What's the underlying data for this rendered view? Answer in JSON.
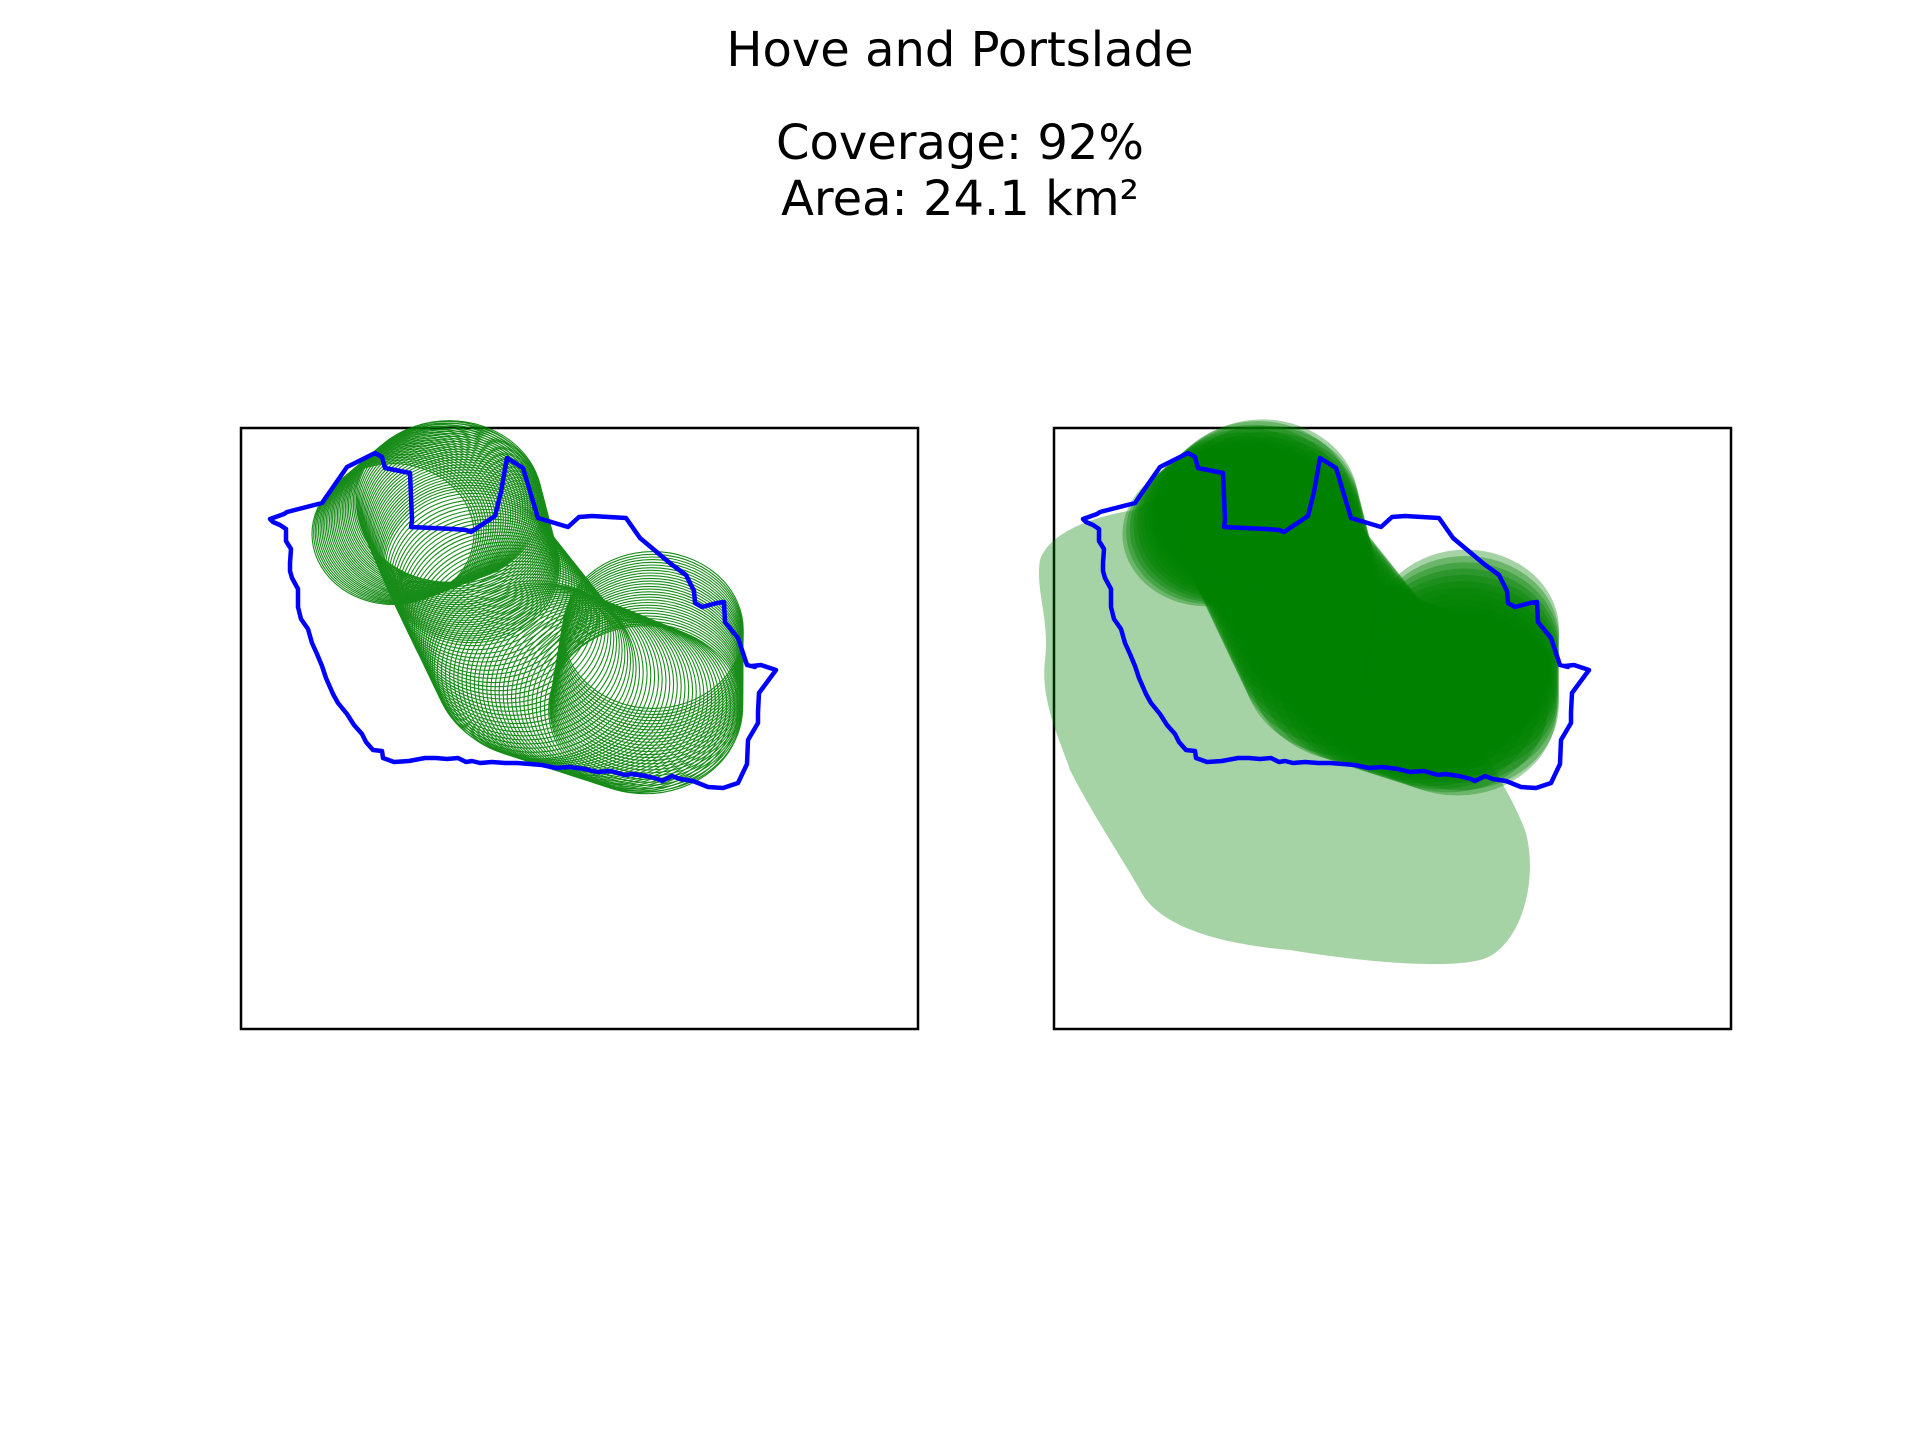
{
  "figure": {
    "title": "Hove and Portslade",
    "coverage_line": "Coverage: 92%",
    "area_line": "Area: 24.1 km²"
  },
  "colors": {
    "boundary": "#0000ff",
    "coverage_fill": "#008000",
    "frame": "#000000",
    "background": "#ffffff"
  },
  "panels": [
    {
      "id": "left",
      "style": "circle-outlines"
    },
    {
      "id": "right",
      "style": "filled-circles"
    }
  ]
}
